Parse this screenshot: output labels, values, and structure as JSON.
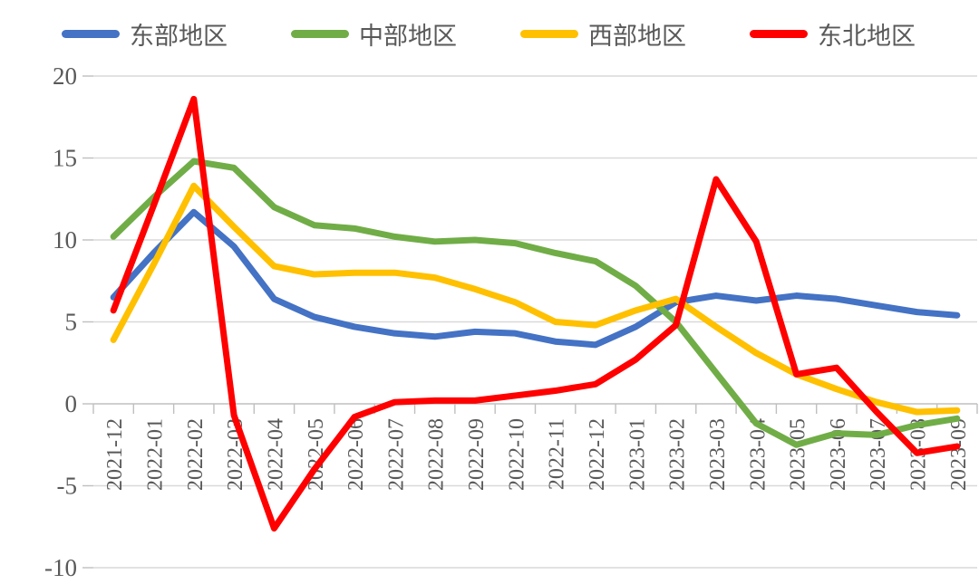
{
  "chart_data": {
    "type": "line",
    "title": "",
    "xlabel": "",
    "ylabel": "",
    "categories": [
      "2021-12",
      "2022-01",
      "2022-02",
      "2022-03",
      "2022-04",
      "2022-05",
      "2022-06",
      "2022-07",
      "2022-08",
      "2022-09",
      "2022-10",
      "2022-11",
      "2022-12",
      "2023-01",
      "2023-02",
      "2023-03",
      "2023-04",
      "2023-05",
      "2023-06",
      "2023-07",
      "2023-08",
      "2023-09"
    ],
    "series": [
      {
        "name": "东部地区",
        "color": "#4472C4",
        "values": [
          6.5,
          9.2,
          11.7,
          9.6,
          6.4,
          5.3,
          4.7,
          4.3,
          4.1,
          4.4,
          4.3,
          3.8,
          3.6,
          4.7,
          6.2,
          6.6,
          6.3,
          6.6,
          6.4,
          6.0,
          5.6,
          5.4
        ]
      },
      {
        "name": "中部地区",
        "color": "#70AD47",
        "values": [
          10.2,
          12.6,
          14.8,
          14.4,
          12.0,
          10.9,
          10.7,
          10.2,
          9.9,
          10.0,
          9.8,
          9.2,
          8.7,
          7.2,
          5.0,
          1.9,
          -1.2,
          -2.5,
          -1.8,
          -1.9,
          -1.3,
          -0.9
        ]
      },
      {
        "name": "西部地区",
        "color": "#FFC000",
        "values": [
          3.9,
          8.5,
          13.3,
          10.8,
          8.4,
          7.9,
          8.0,
          8.0,
          7.7,
          7.0,
          6.2,
          5.0,
          4.8,
          5.7,
          6.4,
          4.7,
          3.1,
          1.8,
          0.9,
          0.1,
          -0.5,
          -0.4
        ]
      },
      {
        "name": "东北地区",
        "color": "#FF0000",
        "values": [
          5.7,
          12.1,
          18.6,
          -0.7,
          -7.6,
          -4.0,
          -0.8,
          0.1,
          0.2,
          0.2,
          0.5,
          0.8,
          1.2,
          2.7,
          4.8,
          13.7,
          9.9,
          1.8,
          2.2,
          -0.5,
          -3.0,
          -2.6
        ]
      }
    ],
    "ylim": [
      -10,
      20
    ],
    "yticks": [
      20,
      15,
      10,
      5,
      0,
      -5,
      -10
    ],
    "grid": true,
    "legend_position": "top",
    "colors": {
      "gridline": "#D9D9D9",
      "axis_line": "#BFBFBF",
      "tick_label": "#595959",
      "background": "#FFFFFF"
    }
  }
}
